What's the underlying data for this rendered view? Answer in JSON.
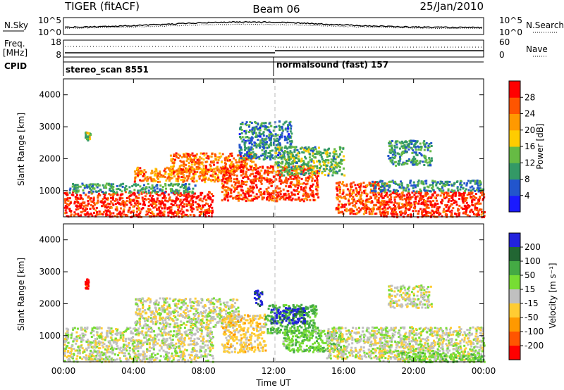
{
  "header": {
    "radar": "TIGER (fitACF)",
    "beam": "Beam 06",
    "date": "25/Jan/2010"
  },
  "summary_panels": {
    "nsky_label": "N.Sky",
    "nsky_ticks": [
      "10^5",
      "10^0"
    ],
    "nsearch_label": "N.Search",
    "nsearch_ticks": [
      "10^5",
      "10^0"
    ],
    "freq_label_line1": "Freq.",
    "freq_label_line2": "[MHz]",
    "freq_ticks": [
      "18",
      "8"
    ],
    "nave_label": "Nave",
    "nave_ticks": [
      "60",
      "0"
    ],
    "cpid_label": "CPID",
    "cpid_segments": [
      {
        "start_hour": 0,
        "label": "stereo_scan 8551"
      },
      {
        "start_hour": 12,
        "label": "normalsound (fast) 157"
      }
    ],
    "nsky_colors": {
      "line": "#000000",
      "search_line": "#000000"
    }
  },
  "chart_data": [
    {
      "type": "heatmap",
      "panel": "power",
      "ylabel": "Slant Range [km]",
      "xlabel": "",
      "x_ticks": [
        "00:00",
        "04:00",
        "08:00",
        "12:00",
        "16:00",
        "20:00",
        "00:00"
      ],
      "xlim_hours": [
        0,
        24
      ],
      "y_ticks": [
        1000,
        2000,
        3000,
        4000
      ],
      "ylim": [
        180,
        4500
      ],
      "colorbar": {
        "label": "Power [dB]",
        "ticks": [
          "4",
          "8",
          "12",
          "16",
          "20",
          "24",
          "28"
        ],
        "range": [
          0,
          30
        ],
        "colors": [
          "#1a1aff",
          "#2255cc",
          "#339966",
          "#66bb44",
          "#ffcc00",
          "#ff9900",
          "#ff5500",
          "#ff0000"
        ]
      },
      "regions": [
        {
          "t0": 0.0,
          "t1": 8.5,
          "r0": 200,
          "r1": 1000,
          "value": 27
        },
        {
          "t0": 0.3,
          "t1": 7.5,
          "r0": 950,
          "r1": 1250,
          "value": 10
        },
        {
          "t0": 4.0,
          "t1": 9.5,
          "r0": 1300,
          "r1": 1750,
          "value": 22
        },
        {
          "t0": 6.0,
          "t1": 11.0,
          "r0": 1600,
          "r1": 2200,
          "value": 23
        },
        {
          "t0": 9.0,
          "t1": 14.5,
          "r0": 700,
          "r1": 1800,
          "value": 26
        },
        {
          "t0": 10.0,
          "t1": 13.0,
          "r0": 2000,
          "r1": 3200,
          "value": 8
        },
        {
          "t0": 12.0,
          "t1": 16.0,
          "r0": 1500,
          "r1": 2400,
          "value": 12
        },
        {
          "t0": 15.5,
          "t1": 18.5,
          "r0": 300,
          "r1": 1300,
          "value": 25
        },
        {
          "t0": 18.0,
          "t1": 24.0,
          "r0": 200,
          "r1": 1000,
          "value": 27
        },
        {
          "t0": 17.5,
          "t1": 24.0,
          "r0": 1000,
          "r1": 1350,
          "value": 9
        },
        {
          "t0": 18.5,
          "t1": 21.0,
          "r0": 1800,
          "r1": 2600,
          "value": 10
        },
        {
          "t0": 1.2,
          "t1": 1.5,
          "r0": 2600,
          "r1": 2900,
          "value": 14
        }
      ]
    },
    {
      "type": "heatmap",
      "panel": "velocity",
      "ylabel": "Slant Range [km]",
      "xlabel": "Time UT",
      "x_ticks": [
        "00:00",
        "04:00",
        "08:00",
        "12:00",
        "16:00",
        "20:00",
        "00:00"
      ],
      "xlim_hours": [
        0,
        24
      ],
      "y_ticks": [
        1000,
        2000,
        3000,
        4000
      ],
      "ylim": [
        180,
        4500
      ],
      "colorbar": {
        "label": "Velocity [m s⁻¹]",
        "ticks": [
          "200",
          "100",
          "50",
          "15",
          "-15",
          "-50",
          "-100",
          "-200"
        ],
        "range": [
          -250,
          250
        ],
        "colors": [
          "#2222dd",
          "#226633",
          "#44aa44",
          "#77dd33",
          "#c0c0c0",
          "#ffcc33",
          "#ff9900",
          "#ff5500",
          "#ff0000"
        ]
      },
      "regions": [
        {
          "t0": 0.0,
          "t1": 8.5,
          "r0": 200,
          "r1": 1300,
          "value": 0
        },
        {
          "t0": 4.0,
          "t1": 10.0,
          "r0": 1300,
          "r1": 2200,
          "value": 0
        },
        {
          "t0": 9.0,
          "t1": 11.5,
          "r0": 500,
          "r1": 1700,
          "value": -30
        },
        {
          "t0": 11.5,
          "t1": 14.5,
          "r0": 1100,
          "r1": 2000,
          "value": 70
        },
        {
          "t0": 11.8,
          "t1": 13.8,
          "r0": 1400,
          "r1": 1900,
          "value": 220
        },
        {
          "t0": 10.8,
          "t1": 11.3,
          "r0": 1900,
          "r1": 2450,
          "value": 220
        },
        {
          "t0": 12.5,
          "t1": 16.0,
          "r0": 500,
          "r1": 1200,
          "value": 40
        },
        {
          "t0": 15.0,
          "t1": 18.5,
          "r0": 300,
          "r1": 1300,
          "value": 0
        },
        {
          "t0": 18.0,
          "t1": 24.0,
          "r0": 200,
          "r1": 1300,
          "value": 0
        },
        {
          "t0": 19.0,
          "t1": 24.0,
          "r0": 200,
          "r1": 500,
          "value": 40
        },
        {
          "t0": 18.5,
          "t1": 21.0,
          "r0": 1900,
          "r1": 2600,
          "value": 0
        },
        {
          "t0": 1.2,
          "t1": 1.4,
          "r0": 2500,
          "r1": 2800,
          "value": -220
        }
      ]
    }
  ]
}
